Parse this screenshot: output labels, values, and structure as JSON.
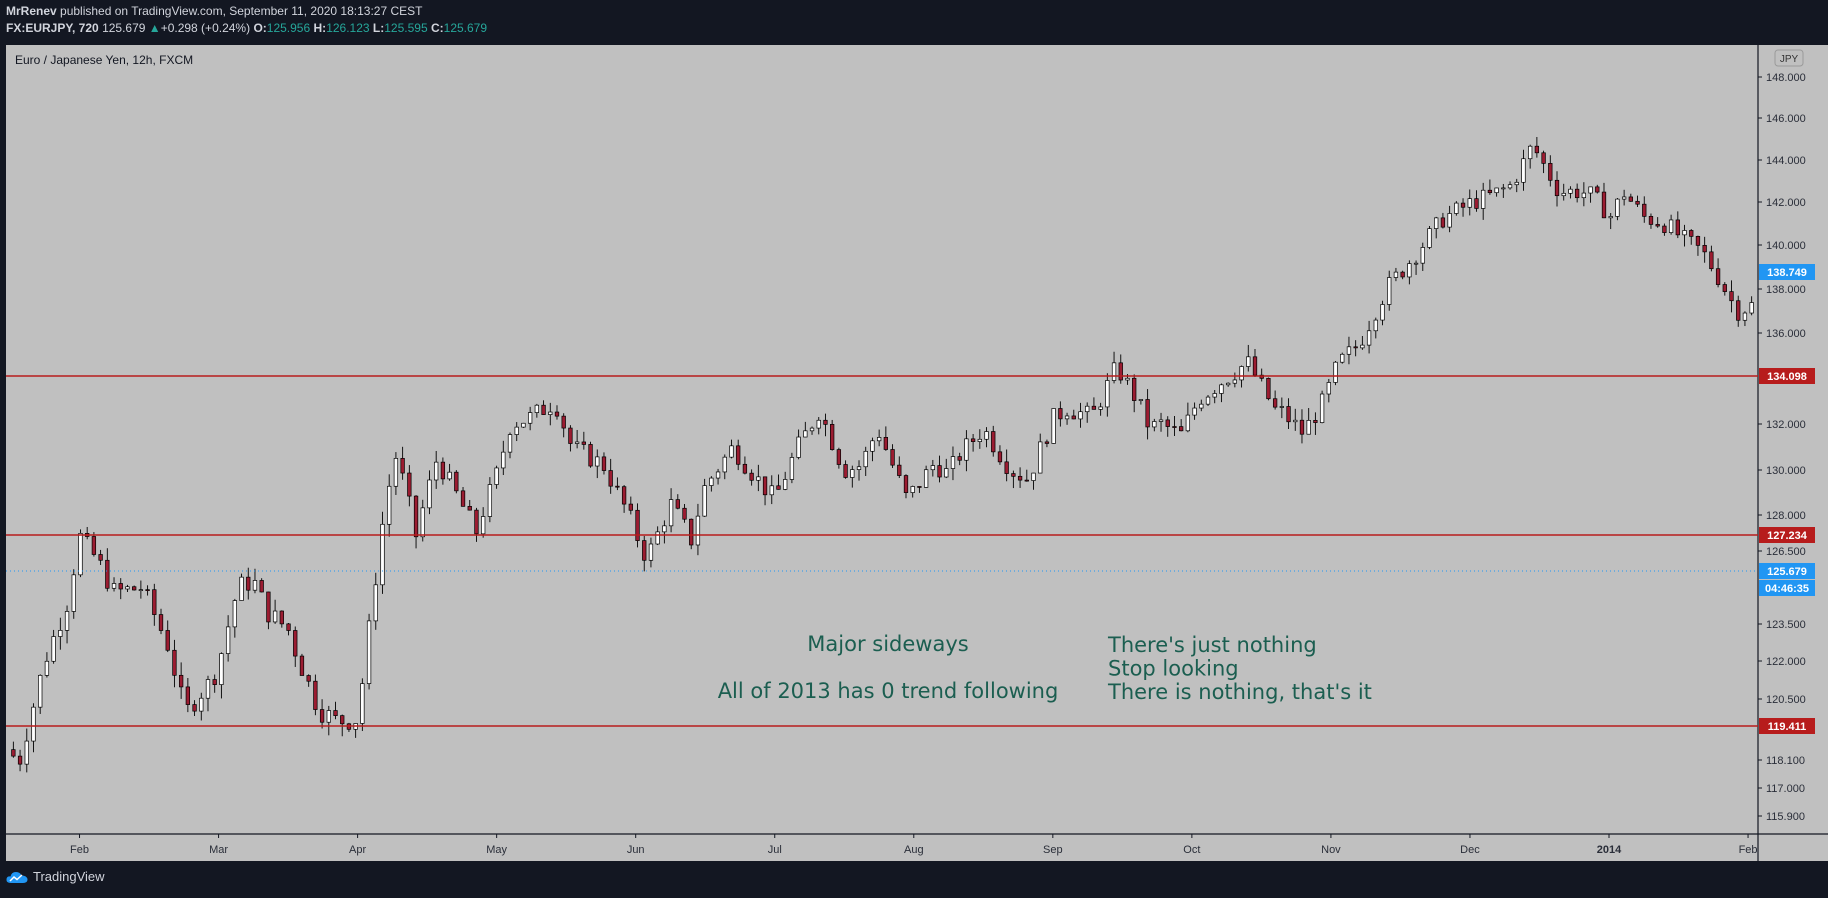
{
  "header": {
    "author": "MrRenev",
    "published": " published on TradingView.com, September 11, 2020 18:13:27 CEST",
    "symbol": "FX:EURJPY, 720",
    "last": "125.679",
    "change": "+0.298 (+0.24%)",
    "o_label": "O:",
    "o_value": "125.956",
    "h_label": "H:",
    "h_value": "126.123",
    "l_label": "L:",
    "l_value": "125.595",
    "c_label": "C:",
    "c_value": "125.679",
    "up_arrow": "▲"
  },
  "chart_title": "Euro / Japanese Yen, 12h, FXCM",
  "currency_label": "JPY",
  "colors": {
    "plot_bg": "#c0c0c0",
    "frame": "#131722",
    "candle_up": "#ffffff",
    "candle_down": "#9b1c31",
    "wick": "#000000",
    "level_line": "#b71c1c",
    "price_line": "#2196f3",
    "annotation": "#1b5e50",
    "label_red": "#b71c1c",
    "label_blue": "#2196f3"
  },
  "annotations": [
    {
      "id": "sideways",
      "lines": [
        "Major sideways",
        "",
        "All of 2013 has 0 trend following"
      ],
      "align": "center"
    },
    {
      "id": "nothing",
      "lines": [
        "There's just nothing",
        "Stop looking",
        "There is nothing, that's it"
      ],
      "align": "left"
    }
  ],
  "price_labels": [
    {
      "value": 138.749,
      "text": "138.749",
      "color": "blue"
    },
    {
      "value": 134.098,
      "text": "134.098",
      "color": "red"
    },
    {
      "value": 127.234,
      "text": "127.234",
      "color": "red"
    },
    {
      "value": 125.679,
      "text": "125.679",
      "color": "blue"
    },
    {
      "value": 119.411,
      "text": "119.411",
      "color": "red"
    }
  ],
  "countdown": "04:46:35",
  "footer": {
    "brand": "TradingView"
  },
  "chart_data": {
    "type": "candlestick",
    "title": "Euro / Japanese Yen, 12h, FXCM",
    "symbol": "EURJPY",
    "timeframe": "12h",
    "y_ticks": [
      {
        "value": 148.0,
        "label": "148.000"
      },
      {
        "value": 146.0,
        "label": "146.000"
      },
      {
        "value": 144.0,
        "label": "144.000"
      },
      {
        "value": 142.0,
        "label": "142.000"
      },
      {
        "value": 140.0,
        "label": "140.000"
      },
      {
        "value": 138.0,
        "label": "138.000"
      },
      {
        "value": 136.0,
        "label": "136.000"
      },
      {
        "value": 132.0,
        "label": "132.000"
      },
      {
        "value": 130.0,
        "label": "130.000"
      },
      {
        "value": 128.0,
        "label": "128.000"
      },
      {
        "value": 126.5,
        "label": "126.500"
      },
      {
        "value": 123.5,
        "label": "123.500"
      },
      {
        "value": 122.0,
        "label": "122.000"
      },
      {
        "value": 120.5,
        "label": "120.500"
      },
      {
        "value": 118.1,
        "label": "118.100"
      },
      {
        "value": 117.0,
        "label": "117.000"
      },
      {
        "value": 115.9,
        "label": "115.900"
      }
    ],
    "x_ticks": [
      {
        "t": 0.5,
        "label": "Feb",
        "bold": false
      },
      {
        "t": 1.5,
        "label": "Mar",
        "bold": false
      },
      {
        "t": 2.5,
        "label": "Apr",
        "bold": false
      },
      {
        "t": 3.5,
        "label": "May",
        "bold": false
      },
      {
        "t": 4.5,
        "label": "Jun",
        "bold": false
      },
      {
        "t": 5.5,
        "label": "Jul",
        "bold": false
      },
      {
        "t": 6.5,
        "label": "Aug",
        "bold": false
      },
      {
        "t": 7.5,
        "label": "Sep",
        "bold": false
      },
      {
        "t": 8.5,
        "label": "Oct",
        "bold": false
      },
      {
        "t": 9.5,
        "label": "Nov",
        "bold": false
      },
      {
        "t": 10.5,
        "label": "Dec",
        "bold": false
      },
      {
        "t": 11.5,
        "label": "2014",
        "bold": true
      },
      {
        "t": 12.5,
        "label": "Feb",
        "bold": false
      }
    ],
    "t_range": [
      0,
      12.55
    ],
    "horizontal_levels": [
      134.098,
      127.234,
      119.411
    ],
    "last_price": 125.679,
    "path_t": [
      0,
      0.06,
      0.25,
      0.42,
      0.5,
      0.64,
      0.75,
      0.95,
      1.14,
      1.26,
      1.36,
      1.45,
      1.5,
      1.64,
      1.75,
      1.85,
      2.0,
      2.06,
      2.22,
      2.35,
      2.5,
      2.57,
      2.7,
      2.78,
      2.92,
      3.07,
      3.22,
      3.35,
      3.5,
      3.6,
      3.75,
      3.92,
      4.04,
      4.16,
      4.27,
      4.45,
      4.58,
      4.75,
      4.9,
      5.0,
      5.2,
      5.36,
      5.5,
      5.65,
      5.82,
      6.0,
      6.12,
      6.24,
      6.45,
      6.65,
      6.75,
      6.82,
      7.0,
      7.2,
      7.32,
      7.5,
      7.6,
      7.78,
      7.96,
      8.1,
      8.2,
      8.28,
      8.42,
      8.55,
      8.7,
      8.9,
      9.1,
      9.15,
      9.3,
      9.45,
      9.55,
      9.7,
      9.9,
      10.1,
      10.3,
      10.52,
      10.65,
      10.8,
      10.95,
      11.14,
      11.3,
      11.38,
      11.52,
      11.6,
      11.75,
      11.9,
      12.05,
      12.17,
      12.3,
      12.42,
      12.55
    ],
    "path_p": [
      118.5,
      117.9,
      122.0,
      124.5,
      127.2,
      126.0,
      124.8,
      125.0,
      122.6,
      119.9,
      120.7,
      121.2,
      121.9,
      125.0,
      125.3,
      124.0,
      123.3,
      122.3,
      120.1,
      119.6,
      119.7,
      122.7,
      128.6,
      130.7,
      127.2,
      130.5,
      128.8,
      127.3,
      129.8,
      132.0,
      132.3,
      133.0,
      131.0,
      130.6,
      130.2,
      128.0,
      126.2,
      128.5,
      127.0,
      129.3,
      131.0,
      129.7,
      128.7,
      130.8,
      132.6,
      130.0,
      130.2,
      131.8,
      128.7,
      130.3,
      129.8,
      130.6,
      131.8,
      130.0,
      129.6,
      132.2,
      132.7,
      132.3,
      134.5,
      133.1,
      131.8,
      132.0,
      131.5,
      133.1,
      133.8,
      134.7,
      132.6,
      132.5,
      131.6,
      133.0,
      134.6,
      135.5,
      138.0,
      139.5,
      141.2,
      142.0,
      142.3,
      142.8,
      144.7,
      142.5,
      142.5,
      142.3,
      141.3,
      142.5,
      141.3,
      141.0,
      140.2,
      139.7,
      138.4,
      137.0,
      137.3
    ],
    "candle_count": 260,
    "seed": 7
  }
}
